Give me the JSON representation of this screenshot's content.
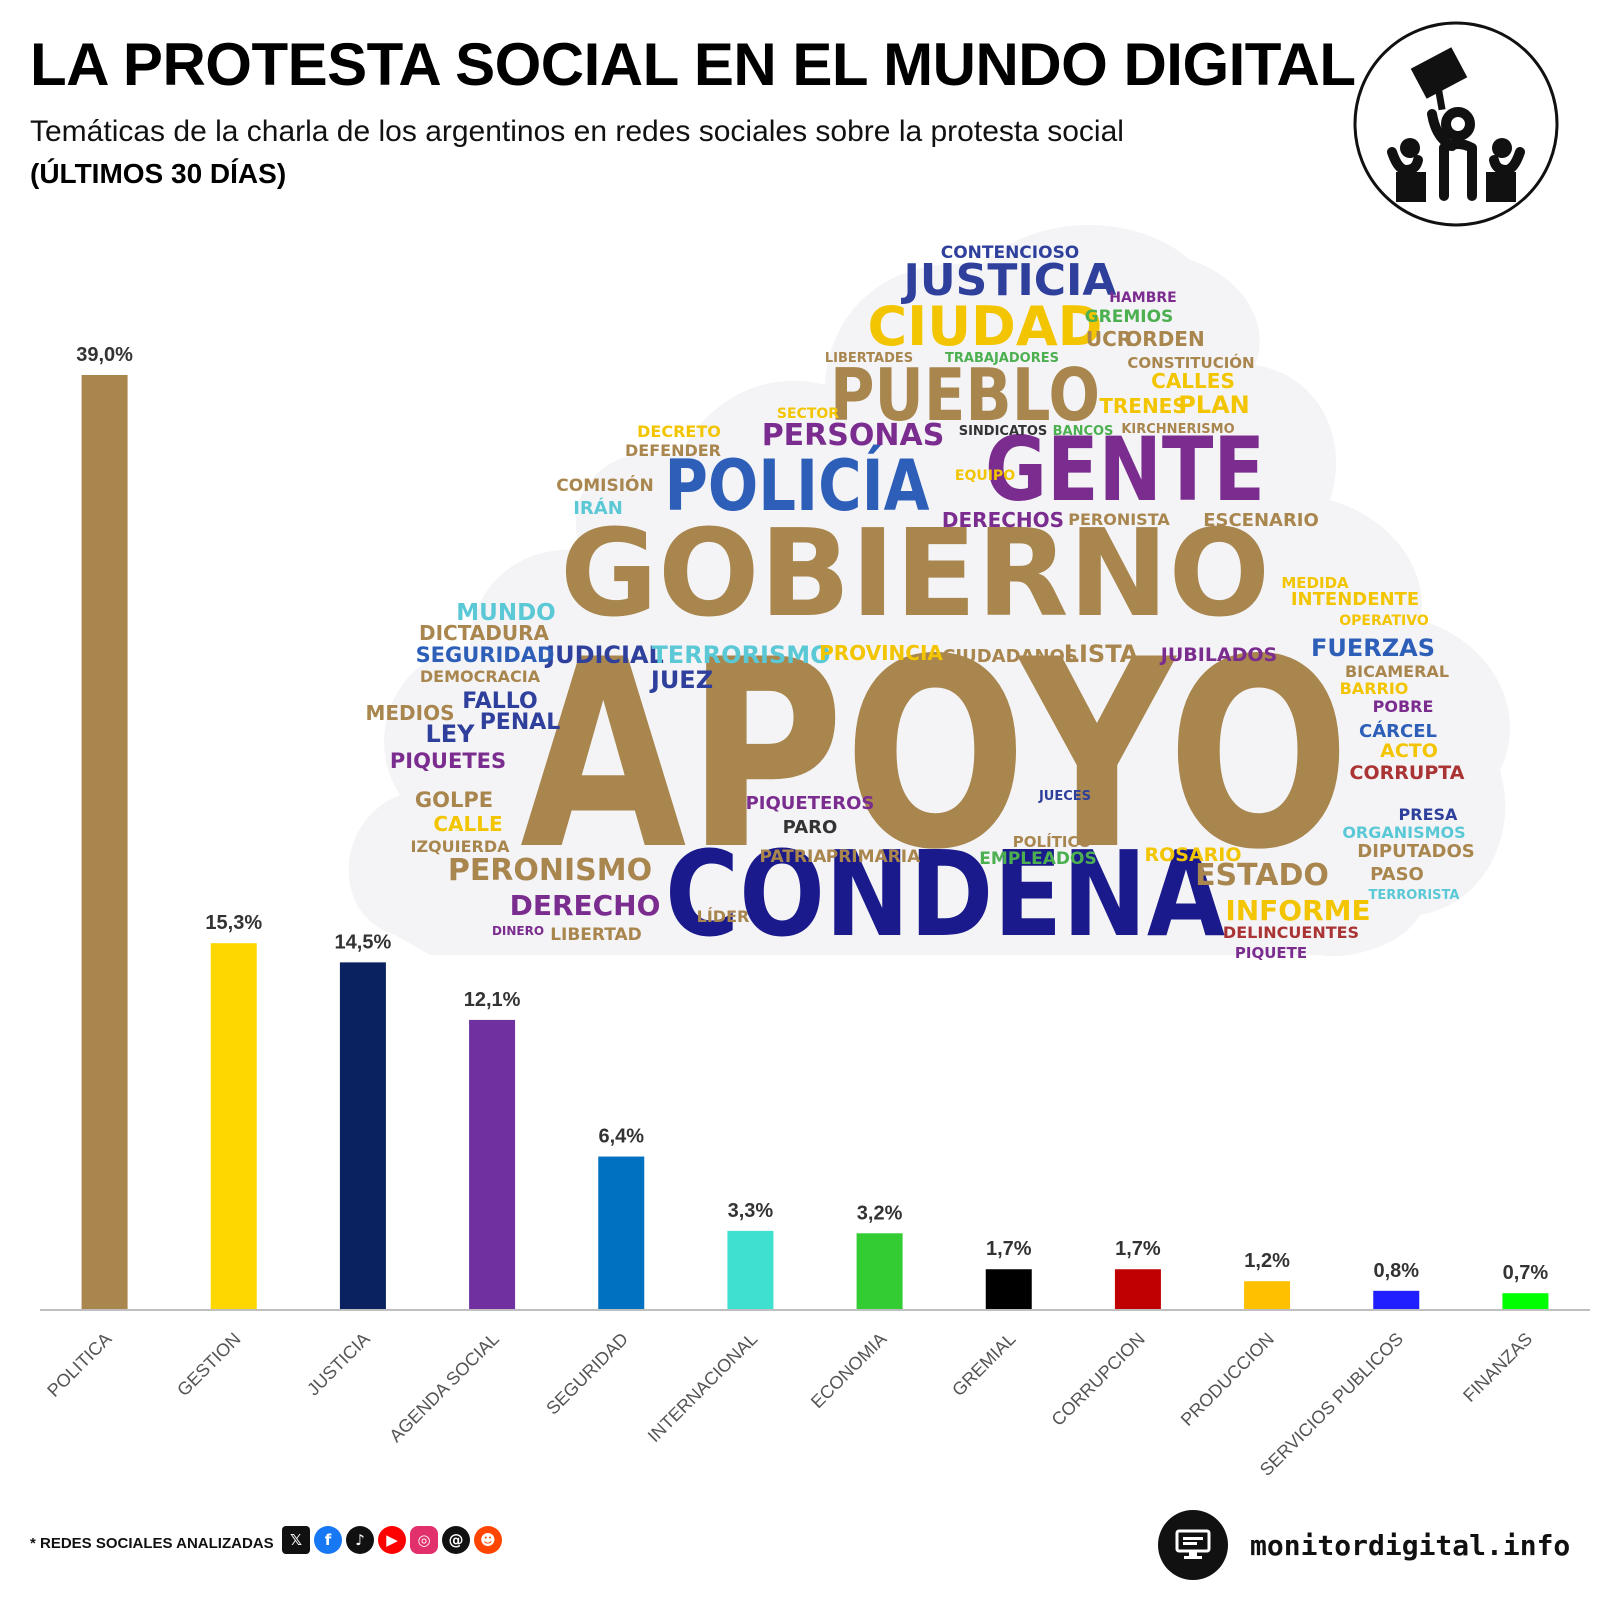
{
  "header": {
    "title": "LA PROTESTA SOCIAL EN EL MUNDO DIGITAL",
    "subtitle": "Temáticas de la charla de los argentinos en redes sociales sobre la protesta social",
    "period": "(ÚLTIMOS 30 DÍAS)"
  },
  "logo": {
    "icon": "protest-person-icon"
  },
  "chart_data": {
    "type": "bar",
    "title": "Temáticas de la charla de los argentinos en redes sociales sobre la protesta social",
    "xlabel": "",
    "ylabel": "",
    "ylim": [
      0,
      40
    ],
    "grid": false,
    "categories": [
      "POLITICA",
      "GESTION",
      "JUSTICIA",
      "AGENDA SOCIAL",
      "SEGURIDAD",
      "INTERNACIONAL",
      "ECONOMIA",
      "GREMIAL",
      "CORRUPCION",
      "PRODUCCION",
      "SERVICIOS PUBLICOS",
      "FINANZAS"
    ],
    "values": [
      39.0,
      15.3,
      14.5,
      12.1,
      6.4,
      3.3,
      3.2,
      1.7,
      1.7,
      1.2,
      0.8,
      0.7
    ],
    "value_labels": [
      "39,0%",
      "15,3%",
      "14,5%",
      "12,1%",
      "6,4%",
      "3,3%",
      "3,2%",
      "1,7%",
      "1,7%",
      "1,2%",
      "0,8%",
      "0,7%"
    ],
    "colors": [
      "#A8864E",
      "#FFD700",
      "#0A2260",
      "#7030A0",
      "#0070C0",
      "#40E0D0",
      "#33CC33",
      "#000000",
      "#C00000",
      "#FFC000",
      "#1F1FFF",
      "#00FF00"
    ]
  },
  "word_cloud": {
    "words": [
      {
        "text": "APOYO",
        "color": "#A8864E",
        "weight": 10
      },
      {
        "text": "GOBIERNO",
        "color": "#A8864E",
        "weight": 7
      },
      {
        "text": "CONDENA",
        "color": "#1a1a8c",
        "weight": 6
      },
      {
        "text": "GENTE",
        "color": "#7B2C8F",
        "weight": 5
      },
      {
        "text": "POLICÍA",
        "color": "#2E5FB8",
        "weight": 4.5
      },
      {
        "text": "PUEBLO",
        "color": "#A8864E",
        "weight": 4.5
      },
      {
        "text": "CIUDAD",
        "color": "#F2C500",
        "weight": 3.5
      },
      {
        "text": "JUSTICIA",
        "color": "#2E3F9C",
        "weight": 3.5
      },
      {
        "text": "PERSONAS",
        "color": "#7B2C8F",
        "weight": 2.5
      },
      {
        "text": "PERONISMO",
        "color": "#A8864E",
        "weight": 2.5
      },
      {
        "text": "DERECHO",
        "color": "#7B2C8F",
        "weight": 2.5
      },
      {
        "text": "ESTADO",
        "color": "#A8864E",
        "weight": 2.5
      },
      {
        "text": "INFORME",
        "color": "#F2C500",
        "weight": 2.3
      },
      {
        "text": "FUERZAS",
        "color": "#2E5FB8",
        "weight": 2.2
      },
      {
        "text": "DERECHOS",
        "color": "#7B2C8F",
        "weight": 1.8
      },
      {
        "text": "TRENES",
        "color": "#F2C500",
        "weight": 1.8
      },
      {
        "text": "PLAN",
        "color": "#F2C500",
        "weight": 1.9
      },
      {
        "text": "CALLES",
        "color": "#F2C500",
        "weight": 1.7
      },
      {
        "text": "ORDEN",
        "color": "#A8864E",
        "weight": 1.8
      },
      {
        "text": "UCR",
        "color": "#A8864E",
        "weight": 1.8
      },
      {
        "text": "GREMIOS",
        "color": "#4CAF50",
        "weight": 1.6
      },
      {
        "text": "HAMBRE",
        "color": "#7B2C8F",
        "weight": 1.3
      },
      {
        "text": "CONTENCIOSO",
        "color": "#2E3F9C",
        "weight": 1.5
      },
      {
        "text": "JUDICIAL",
        "color": "#2E3F9C",
        "weight": 2
      },
      {
        "text": "TERRORISMO",
        "color": "#5BC8D6",
        "weight": 2
      },
      {
        "text": "PROVINCIA",
        "color": "#F2C500",
        "weight": 1.8
      },
      {
        "text": "CIUDADANOS",
        "color": "#A8864E",
        "weight": 1.6
      },
      {
        "text": "LISTA",
        "color": "#A8864E",
        "weight": 2
      },
      {
        "text": "JUBILADOS",
        "color": "#7B2C8F",
        "weight": 1.7
      },
      {
        "text": "SEGURIDAD",
        "color": "#2E5FB8",
        "weight": 2
      },
      {
        "text": "MUNDO",
        "color": "#5BC8D6",
        "weight": 2
      },
      {
        "text": "DICTADURA",
        "color": "#A8864E",
        "weight": 1.8
      },
      {
        "text": "DEMOCRACIA",
        "color": "#A8864E",
        "weight": 1.5
      },
      {
        "text": "JUEZ",
        "color": "#2E3F9C",
        "weight": 2
      },
      {
        "text": "FALLO",
        "color": "#2E3F9C",
        "weight": 1.9
      },
      {
        "text": "PENAL",
        "color": "#2E3F9C",
        "weight": 1.9
      },
      {
        "text": "LEY",
        "color": "#2E3F9C",
        "weight": 2
      },
      {
        "text": "MEDIOS",
        "color": "#A8864E",
        "weight": 1.7
      },
      {
        "text": "PIQUETES",
        "color": "#7B2C8F",
        "weight": 1.9
      },
      {
        "text": "GOLPE",
        "color": "#A8864E",
        "weight": 1.8
      },
      {
        "text": "CALLE",
        "color": "#F2C500",
        "weight": 1.8
      },
      {
        "text": "IZQUIERDA",
        "color": "#A8864E",
        "weight": 1.5
      },
      {
        "text": "LIBERTAD",
        "color": "#A8864E",
        "weight": 1.5
      },
      {
        "text": "PIQUETEROS",
        "color": "#7B2C8F",
        "weight": 1.7
      },
      {
        "text": "PARO",
        "color": "#333333",
        "weight": 1.6
      },
      {
        "text": "PATRIA",
        "color": "#A8864E",
        "weight": 1.5
      },
      {
        "text": "PRIMARIA",
        "color": "#A8864E",
        "weight": 1.5
      },
      {
        "text": "EMPLEADOS",
        "color": "#4CAF50",
        "weight": 1.5
      },
      {
        "text": "ROSARIO",
        "color": "#F2C500",
        "weight": 1.6
      },
      {
        "text": "POLÍTICO",
        "color": "#A8864E",
        "weight": 1.4
      },
      {
        "text": "JUECES",
        "color": "#2E3F9C",
        "weight": 1.3
      },
      {
        "text": "CORRUPTA",
        "color": "#A33",
        "weight": 1.8
      },
      {
        "text": "ACTO",
        "color": "#F2C500",
        "weight": 1.8
      },
      {
        "text": "CÁRCEL",
        "color": "#2E5FB8",
        "weight": 1.8
      },
      {
        "text": "POBRE",
        "color": "#7B2C8F",
        "weight": 1.5
      },
      {
        "text": "PRESA",
        "color": "#2E3F9C",
        "weight": 1.5
      },
      {
        "text": "ORGANISMOS",
        "color": "#5BC8D6",
        "weight": 1.5
      },
      {
        "text": "DIPUTADOS",
        "color": "#A8864E",
        "weight": 1.7
      },
      {
        "text": "PASO",
        "color": "#A8864E",
        "weight": 1.6
      },
      {
        "text": "DELINCUENTES",
        "color": "#A33",
        "weight": 1.4
      },
      {
        "text": "PIQUETE",
        "color": "#7B2C8F",
        "weight": 1.3
      },
      {
        "text": "MEDIDA",
        "color": "#F2C500",
        "weight": 1.5
      },
      {
        "text": "INTENDENTE",
        "color": "#F2C500",
        "weight": 1.6
      },
      {
        "text": "OPERATIVO",
        "color": "#F2C500",
        "weight": 1.3
      },
      {
        "text": "BICAMERAL",
        "color": "#A8864E",
        "weight": 1.5
      },
      {
        "text": "BARRIO",
        "color": "#F2C500",
        "weight": 1.5
      },
      {
        "text": "ESCENARIO",
        "color": "#A8864E",
        "weight": 1.6
      },
      {
        "text": "PERONISTA",
        "color": "#A8864E",
        "weight": 1.5
      },
      {
        "text": "KIRCHNERISMO",
        "color": "#A8864E",
        "weight": 1.2
      },
      {
        "text": "SINDICATOS",
        "color": "#333333",
        "weight": 1.2
      },
      {
        "text": "BANCOS",
        "color": "#4CAF50",
        "weight": 1.2
      },
      {
        "text": "CONSTITUCIÓN",
        "color": "#A8864E",
        "weight": 1.3
      },
      {
        "text": "TRABAJADORES",
        "color": "#4CAF50",
        "weight": 1.2
      },
      {
        "text": "DECRETO",
        "color": "#F2C500",
        "weight": 1.5
      },
      {
        "text": "DEFENDER",
        "color": "#A8864E",
        "weight": 1.4
      },
      {
        "text": "COMISIÓN",
        "color": "#A8864E",
        "weight": 1.5
      },
      {
        "text": "IRÁN",
        "color": "#5BC8D6",
        "weight": 1.6
      },
      {
        "text": "EQUIPO",
        "color": "#F2C500",
        "weight": 1.3
      },
      {
        "text": "SECTOR",
        "color": "#F2C500",
        "weight": 1.3
      },
      {
        "text": "LIBERTADES",
        "color": "#A8864E",
        "weight": 1.1
      },
      {
        "text": "TERRORISTA",
        "color": "#5BC8D6",
        "weight": 1.2
      },
      {
        "text": "LÍDER",
        "color": "#A8864E",
        "weight": 1.5
      },
      {
        "text": "DINERO",
        "color": "#7B2C8F",
        "weight": 1.1
      }
    ]
  },
  "footer": {
    "note": "* REDES SOCIALES ANALIZADAS",
    "social_icons": [
      "x-icon",
      "facebook-icon",
      "tiktok-icon",
      "youtube-icon",
      "instagram-icon",
      "threads-icon",
      "reddit-icon"
    ],
    "site": "monitordigital.info",
    "site_icon": "computer-monitor-icon"
  }
}
